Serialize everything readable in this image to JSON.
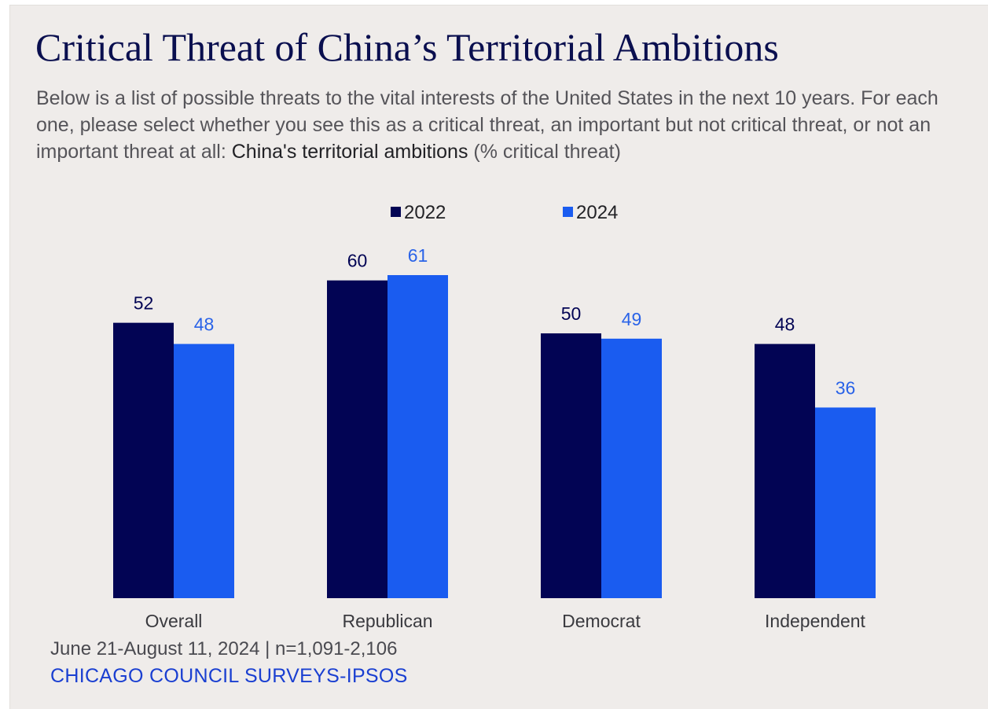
{
  "title": "Critical Threat of China’s Territorial Ambitions",
  "subtitle": {
    "lead": "Below is a list of possible threats to the vital interests of the United States in the next 10 years. For each one, please select whether you see this as a critical threat, an important but not critical threat, or not an important threat at all: ",
    "emphasis": "China's territorial ambitions",
    "tail": " (% critical threat)"
  },
  "footer": {
    "dates": "June 21-August 11, 2024 | n=1,091-2,106",
    "source": "CHICAGO COUNCIL SURVEYS-IPSOS"
  },
  "colors": {
    "series_2022": "#020454",
    "series_2024": "#1a5cf0",
    "label_2024": "#2a63e8"
  },
  "chart_data": {
    "type": "bar",
    "categories": [
      "Overall",
      "Republican",
      "Democrat",
      "Independent"
    ],
    "series": [
      {
        "name": "2022",
        "values": [
          52,
          60,
          50,
          48
        ]
      },
      {
        "name": "2024",
        "values": [
          48,
          61,
          49,
          36
        ]
      }
    ],
    "ylim": [
      0,
      61
    ],
    "grid": false,
    "legend": "top-center",
    "data_labels": true
  }
}
